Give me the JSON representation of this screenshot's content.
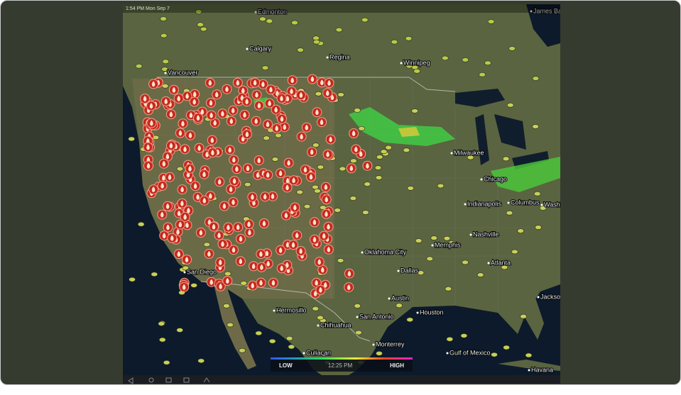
{
  "header": {
    "timestamp": "1:54 PM Mon Sep 7"
  },
  "map": {
    "labels": [
      "Edmonton",
      "Calgary",
      "Regina",
      "Winnipeg",
      "James Bay",
      "Vancouver",
      "San Diego",
      "Hermosillo",
      "Chihuahua",
      "Culiacan",
      "Monterrey",
      "Oklahoma City",
      "Dallas",
      "Austin",
      "San Antonio",
      "Houston",
      "Memphis",
      "Nashville",
      "Atlanta",
      "Indianapolis",
      "Chicago",
      "Milwaukee",
      "Columbus",
      "Washington",
      "Jacksonville",
      "Gulf of Mexico",
      "Havana"
    ]
  },
  "legend": {
    "low": "LOW",
    "time": "12:25 PM",
    "high": "HIGH"
  }
}
